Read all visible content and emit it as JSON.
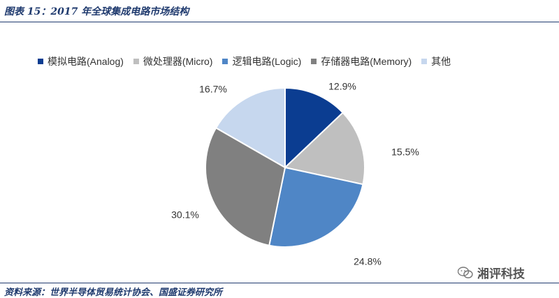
{
  "figure": {
    "title": "图表 15：2017 年全球集成电路市场结构",
    "source": "资料来源：世界半导体贸易统计协会、国盛证券研究所",
    "watermark": "湘评科技",
    "watermark_icon": "wechat-icon"
  },
  "chart_data": {
    "type": "pie",
    "title": "",
    "legend_position": "top",
    "start_angle_deg": 0,
    "direction": "clockwise",
    "slices": [
      {
        "label": "模拟电路(Analog)",
        "value": 12.9,
        "display": "12.9%",
        "color": "#0b3d91"
      },
      {
        "label": "微处理器(Micro)",
        "value": 15.5,
        "display": "15.5%",
        "color": "#bfbfbf"
      },
      {
        "label": "逻辑电路(Logic)",
        "value": 24.8,
        "display": "24.8%",
        "color": "#4f86c6"
      },
      {
        "label": "存储器电路(Memory)",
        "value": 30.1,
        "display": "30.1%",
        "color": "#808080"
      },
      {
        "label": "其他",
        "value": 16.7,
        "display": "16.7%",
        "color": "#c6d7ee"
      }
    ]
  }
}
